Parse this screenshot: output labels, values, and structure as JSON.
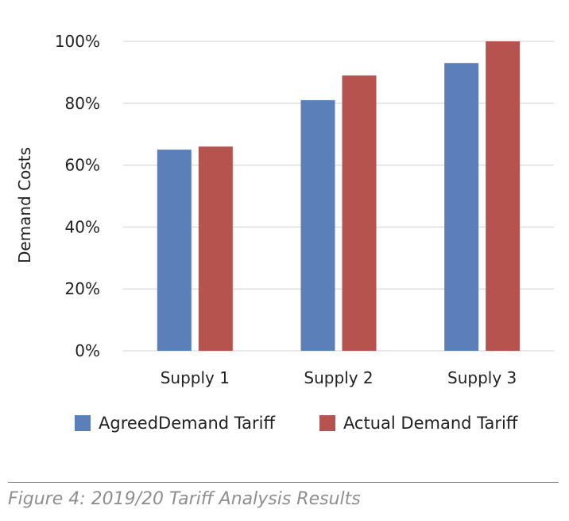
{
  "chart_data": {
    "type": "bar",
    "categories": [
      "Supply 1",
      "Supply 2",
      "Supply 3"
    ],
    "series": [
      {
        "name": "AgreedDemand Tariff",
        "values": [
          65,
          81,
          93
        ],
        "color": "#5b7fb8"
      },
      {
        "name": "Actual Demand Tariff",
        "values": [
          66,
          89,
          100
        ],
        "color": "#b6534f"
      }
    ],
    "ylabel": "Demand Costs",
    "ylim": [
      0,
      100
    ],
    "yticks": [
      0,
      20,
      40,
      60,
      80,
      100
    ],
    "ytick_labels": [
      "0%",
      "20%",
      "40%",
      "60%",
      "80%",
      "100%"
    ],
    "grid": true,
    "legend_position": "bottom"
  },
  "caption": "Figure 4: 2019/20 Tariff Analysis Results"
}
